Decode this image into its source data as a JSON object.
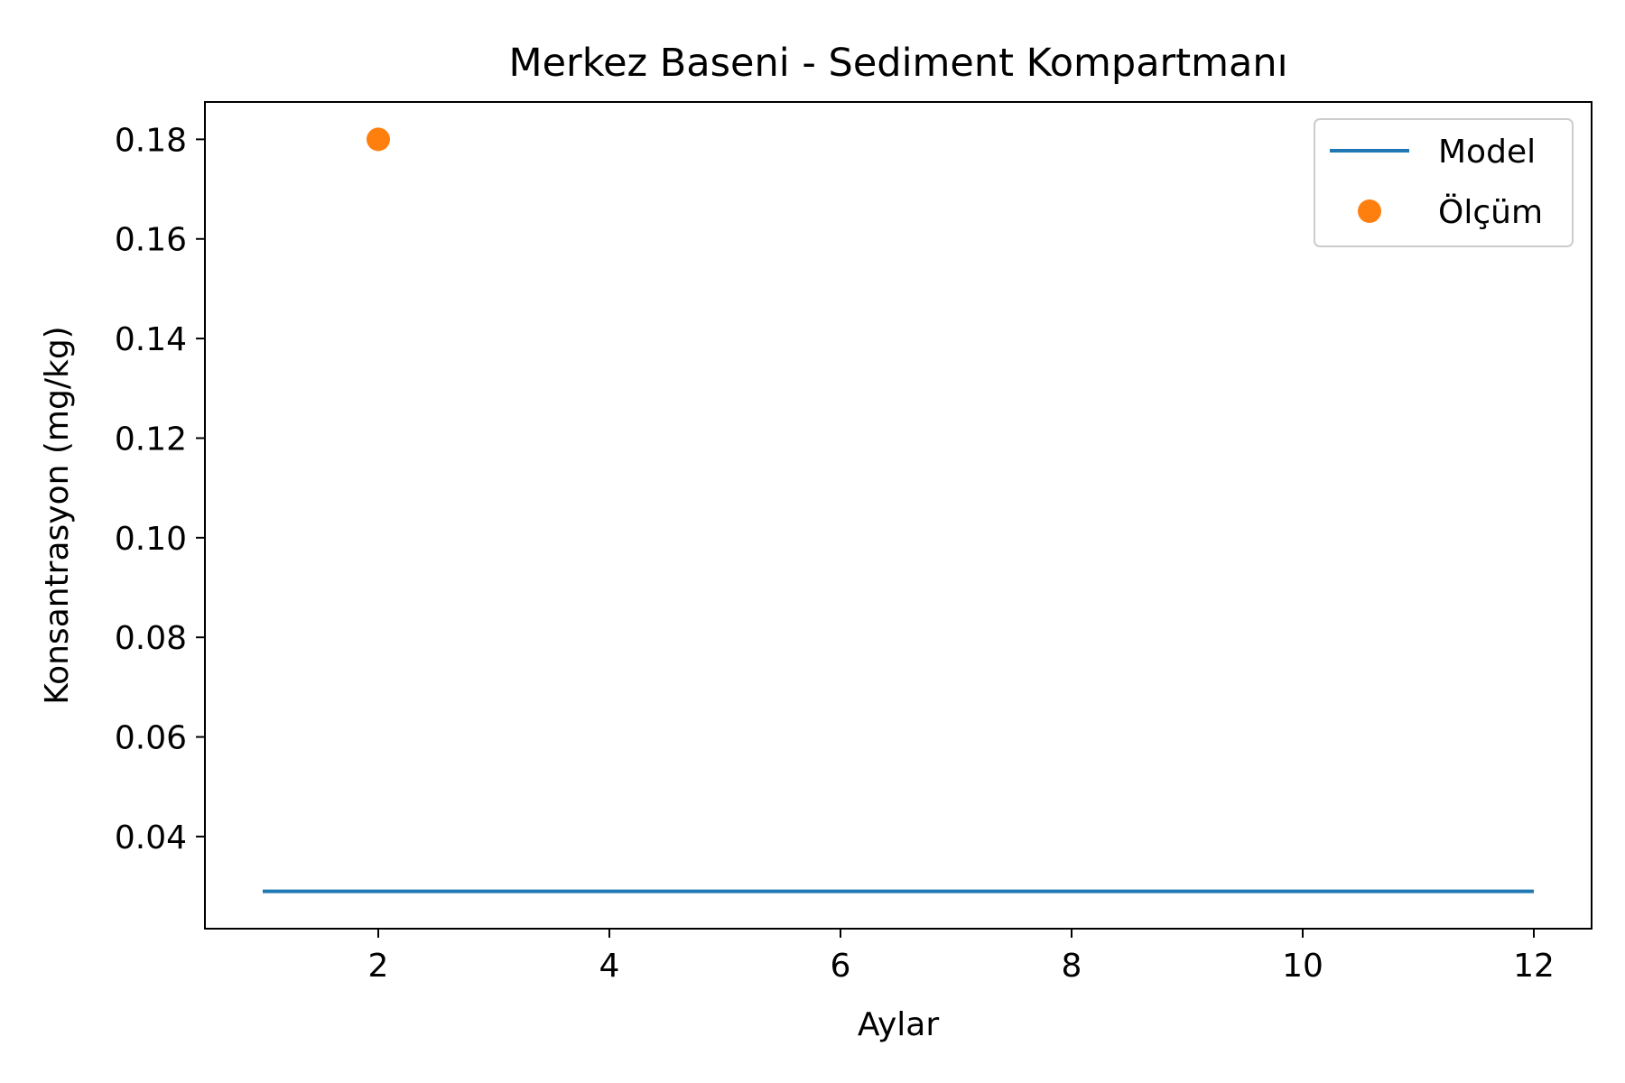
{
  "chart_data": {
    "type": "line",
    "title": "Merkez Baseni - Sediment Kompartmanı",
    "xlabel": "Aylar",
    "ylabel": "Konsantrasyon (mg/kg)",
    "xlim": [
      0.5,
      12.5
    ],
    "ylim": [
      0.0215,
      0.1875
    ],
    "xticks": [
      2,
      4,
      6,
      8,
      10,
      12
    ],
    "yticks": [
      0.04,
      0.06,
      0.08,
      0.1,
      0.12,
      0.14,
      0.16,
      0.18
    ],
    "xtick_labels": [
      "2",
      "4",
      "6",
      "8",
      "10",
      "12"
    ],
    "ytick_labels": [
      "0.04",
      "0.06",
      "0.08",
      "0.10",
      "0.12",
      "0.14",
      "0.16",
      "0.18"
    ],
    "grid": false,
    "legend_position": "top-right",
    "series": [
      {
        "name": "Model",
        "kind": "line",
        "color": "#1f77b4",
        "x": [
          1,
          2,
          3,
          4,
          5,
          6,
          7,
          8,
          9,
          10,
          11,
          12
        ],
        "y": [
          0.029,
          0.029,
          0.029,
          0.029,
          0.029,
          0.029,
          0.029,
          0.029,
          0.029,
          0.029,
          0.029,
          0.029
        ]
      },
      {
        "name": "Ölçüm",
        "kind": "scatter",
        "color": "#ff7f0e",
        "x": [
          2
        ],
        "y": [
          0.18
        ]
      }
    ]
  }
}
